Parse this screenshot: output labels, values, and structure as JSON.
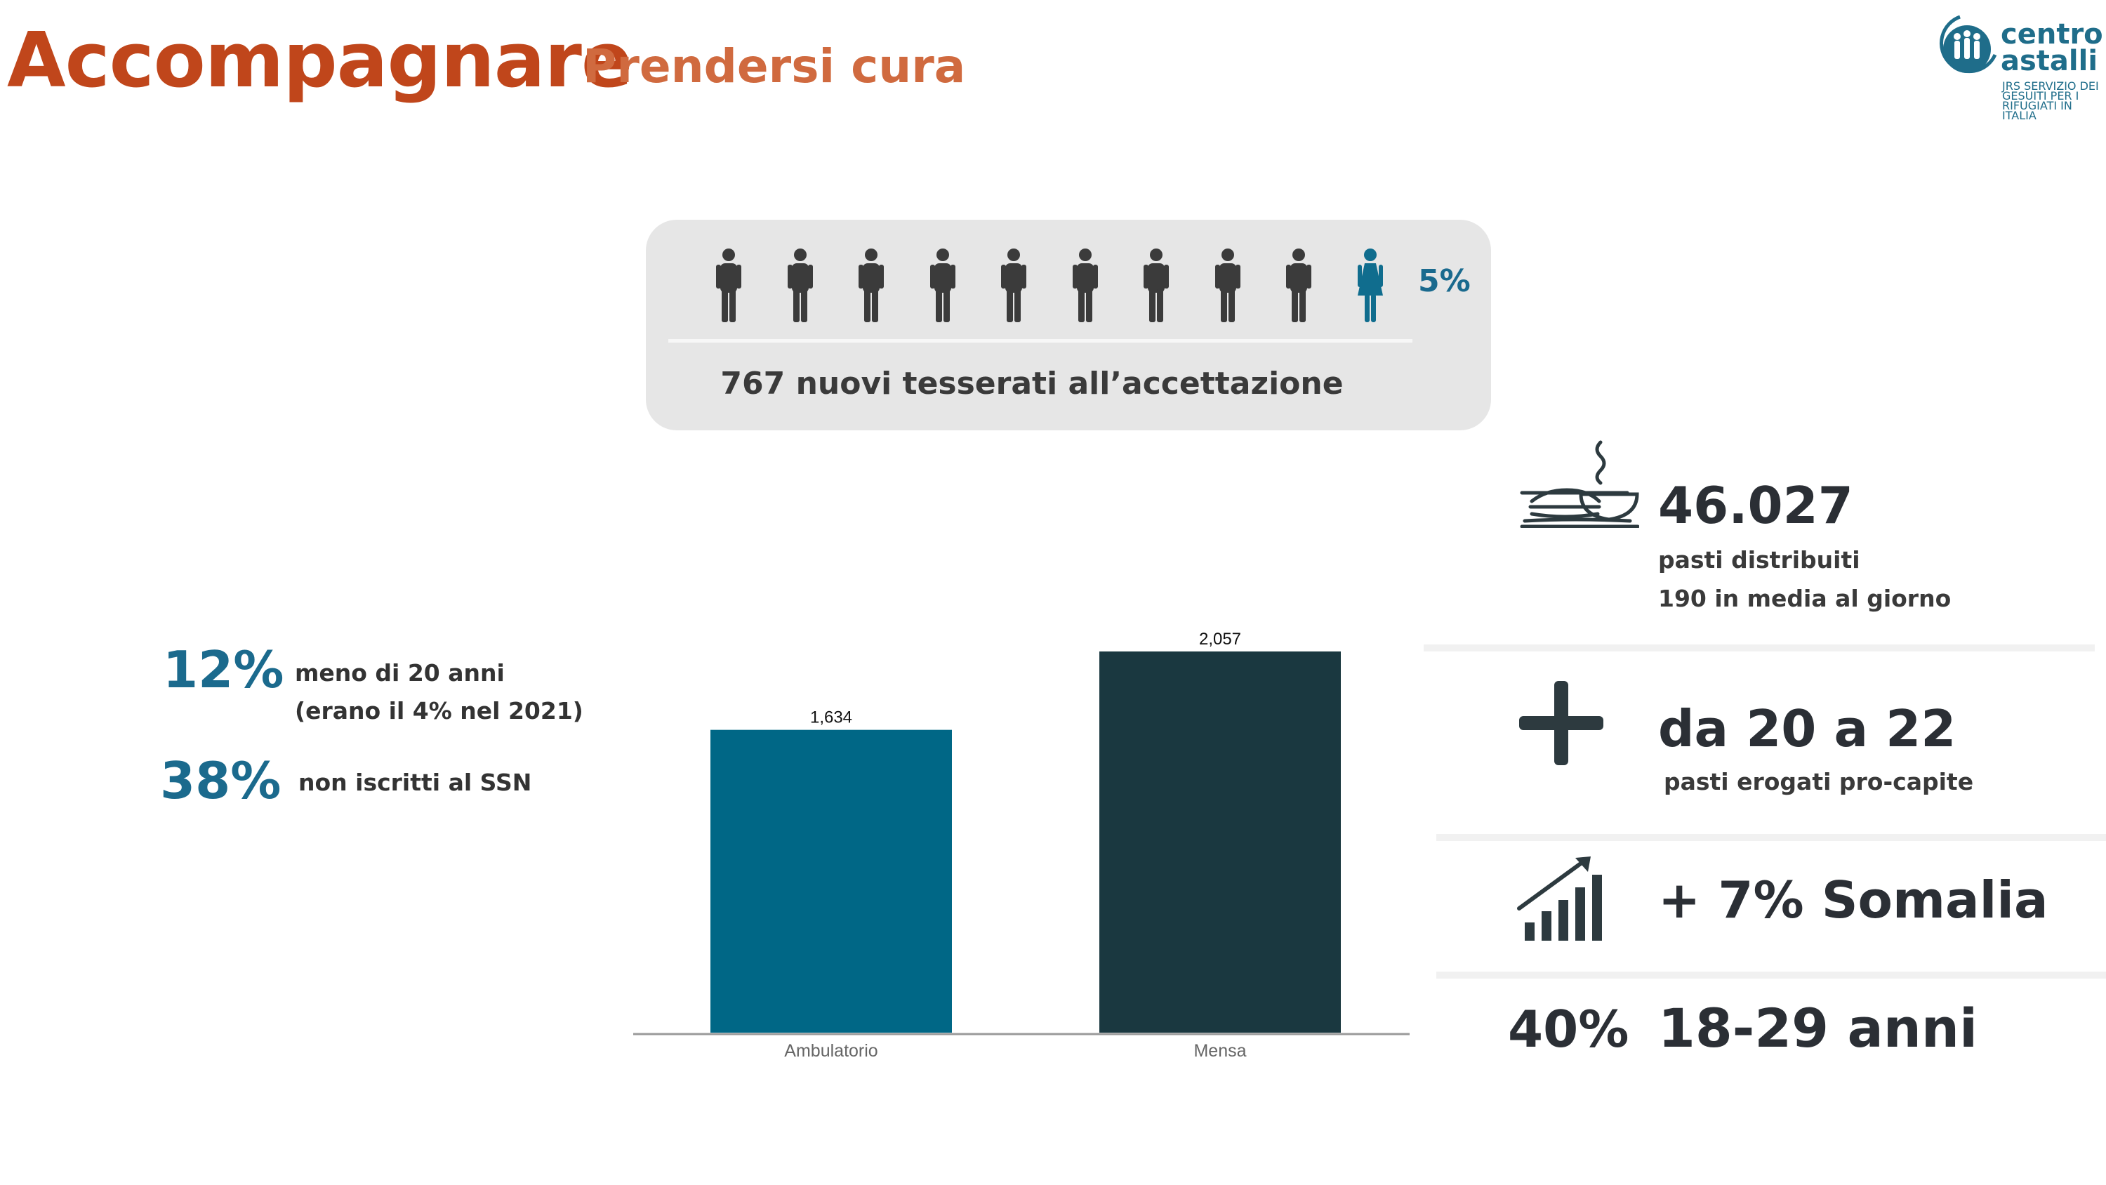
{
  "header": {
    "title": "Accompagnare",
    "subtitle": "Prendersi cura"
  },
  "logo": {
    "line1": "centro",
    "line2": "astalli",
    "sub": "JRS SERVIZIO DEI GESUITI PER I RIFUGIATI IN ITALIA"
  },
  "people_panel": {
    "male_count": 9,
    "female_count": 1,
    "female_pct": "5%",
    "caption": "767 nuovi tesserati all’accettazione",
    "colors": {
      "male": "#3b3b3b",
      "female": "#106d8e"
    }
  },
  "left_stats": [
    {
      "value": "12%",
      "line1": "meno di 20 anni",
      "line2": "(erano il 4% nel 2021)"
    },
    {
      "value": "38%",
      "line1": "non iscritti al SSN",
      "line2": ""
    }
  ],
  "chart_data": {
    "type": "bar",
    "categories": [
      "Ambulatorio",
      "Mensa"
    ],
    "values": [
      1634,
      2057
    ],
    "value_labels": [
      "1,634",
      "2,057"
    ],
    "colors": [
      "#006786",
      "#1a3840"
    ],
    "title": "",
    "xlabel": "",
    "ylabel": "",
    "ylim": [
      0,
      2057
    ],
    "grid": false
  },
  "right_panel": {
    "meals": {
      "value": "46.027",
      "line1": "pasti distribuiti",
      "line2": "190 in media al giorno",
      "icon": "meal-icon"
    },
    "per_capita": {
      "value": "da 20 a 22",
      "line1": "pasti erogati pro-capite",
      "icon": "plus-icon"
    },
    "somalia": {
      "value": "+ 7% Somalia",
      "icon": "growth-chart-icon"
    },
    "age": {
      "pct": "40%",
      "value": "18-29 anni"
    }
  }
}
